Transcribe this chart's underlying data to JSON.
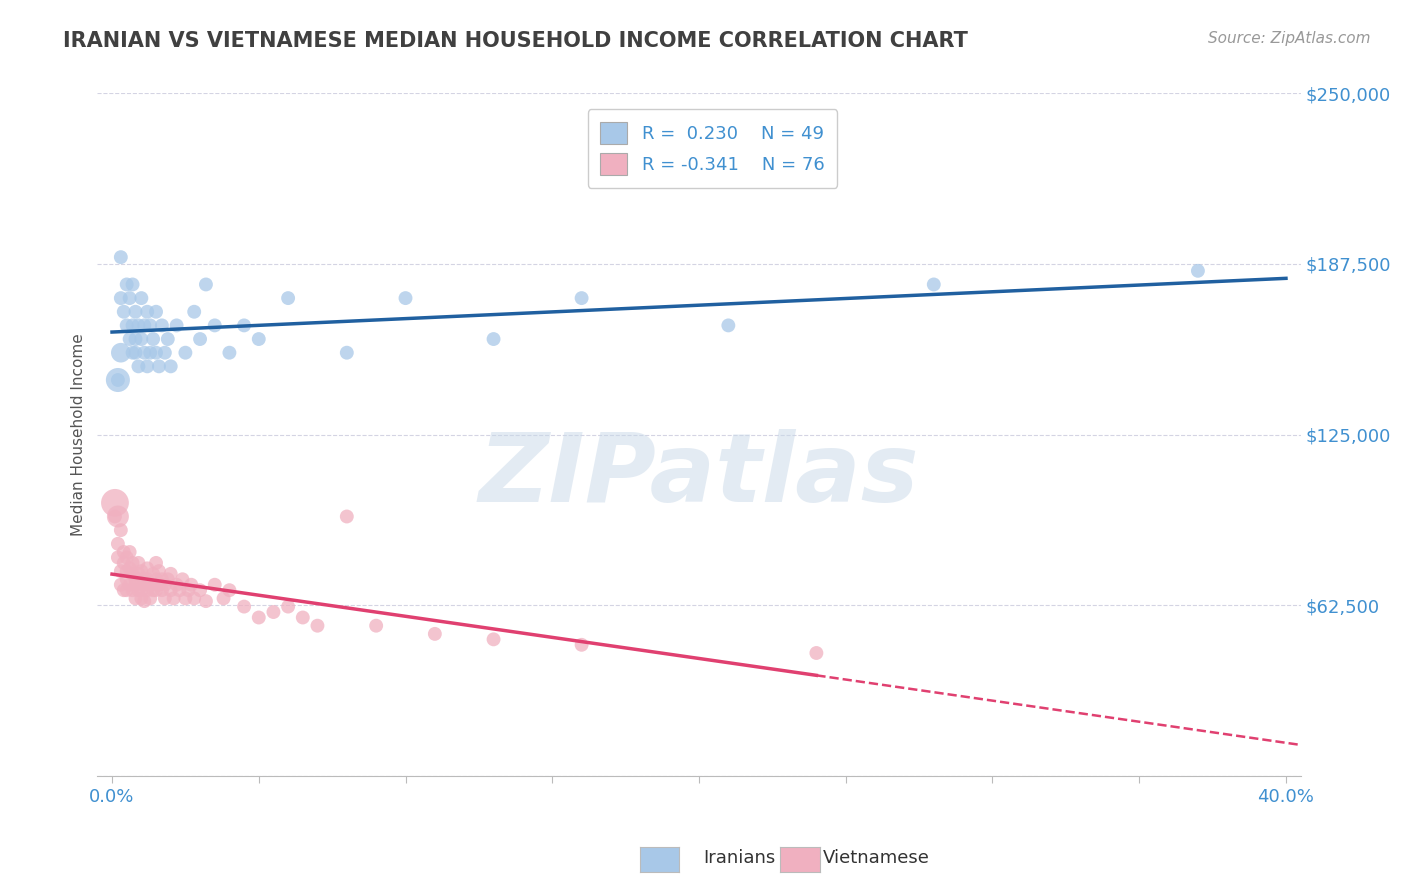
{
  "title": "IRANIAN VS VIETNAMESE MEDIAN HOUSEHOLD INCOME CORRELATION CHART",
  "source": "Source: ZipAtlas.com",
  "ylabel": "Median Household Income",
  "xlim": [
    -0.005,
    0.405
  ],
  "ylim": [
    0,
    250000
  ],
  "yticks": [
    0,
    62500,
    125000,
    187500,
    250000
  ],
  "ytick_labels": [
    "",
    "$62,500",
    "$125,000",
    "$187,500",
    "$250,000"
  ],
  "watermark": "ZIPatlas",
  "iranian_color": "#a8c8e8",
  "vietnamese_color": "#f0b0c0",
  "iranian_trend_color": "#2060a0",
  "vietnamese_trend_color": "#e04070",
  "background_color": "#ffffff",
  "grid_color": "#d0d0e0",
  "title_color": "#404040",
  "axis_label_color": "#4090d0",
  "iranian_scatter": {
    "x": [
      0.002,
      0.003,
      0.003,
      0.004,
      0.005,
      0.005,
      0.006,
      0.006,
      0.007,
      0.007,
      0.007,
      0.008,
      0.008,
      0.008,
      0.009,
      0.009,
      0.01,
      0.01,
      0.011,
      0.011,
      0.012,
      0.012,
      0.013,
      0.013,
      0.014,
      0.015,
      0.015,
      0.016,
      0.017,
      0.018,
      0.019,
      0.02,
      0.022,
      0.025,
      0.028,
      0.03,
      0.032,
      0.035,
      0.04,
      0.045,
      0.05,
      0.06,
      0.08,
      0.1,
      0.13,
      0.16,
      0.21,
      0.28,
      0.37
    ],
    "y": [
      145000,
      175000,
      190000,
      170000,
      165000,
      180000,
      160000,
      175000,
      155000,
      165000,
      180000,
      160000,
      170000,
      155000,
      165000,
      150000,
      160000,
      175000,
      155000,
      165000,
      150000,
      170000,
      155000,
      165000,
      160000,
      155000,
      170000,
      150000,
      165000,
      155000,
      160000,
      150000,
      165000,
      155000,
      170000,
      160000,
      180000,
      165000,
      155000,
      165000,
      160000,
      175000,
      155000,
      175000,
      160000,
      175000,
      165000,
      180000,
      185000
    ]
  },
  "iranian_scatter_big": {
    "x": [
      0.002,
      0.003
    ],
    "y": [
      145000,
      155000
    ],
    "sizes": [
      300,
      200
    ]
  },
  "vietnamese_scatter": {
    "x": [
      0.001,
      0.002,
      0.002,
      0.003,
      0.003,
      0.003,
      0.004,
      0.004,
      0.004,
      0.005,
      0.005,
      0.005,
      0.005,
      0.006,
      0.006,
      0.006,
      0.007,
      0.007,
      0.007,
      0.008,
      0.008,
      0.008,
      0.009,
      0.009,
      0.009,
      0.01,
      0.01,
      0.01,
      0.01,
      0.011,
      0.011,
      0.011,
      0.012,
      0.012,
      0.012,
      0.013,
      0.013,
      0.014,
      0.014,
      0.015,
      0.015,
      0.015,
      0.016,
      0.016,
      0.017,
      0.017,
      0.018,
      0.018,
      0.019,
      0.02,
      0.02,
      0.021,
      0.022,
      0.023,
      0.024,
      0.025,
      0.026,
      0.027,
      0.028,
      0.03,
      0.032,
      0.035,
      0.038,
      0.04,
      0.045,
      0.05,
      0.055,
      0.06,
      0.065,
      0.07,
      0.08,
      0.09,
      0.11,
      0.13,
      0.16,
      0.24
    ],
    "y": [
      95000,
      80000,
      85000,
      75000,
      70000,
      90000,
      68000,
      78000,
      82000,
      72000,
      68000,
      80000,
      75000,
      70000,
      76000,
      82000,
      68000,
      74000,
      78000,
      72000,
      65000,
      70000,
      68000,
      74000,
      78000,
      65000,
      72000,
      68000,
      75000,
      70000,
      64000,
      72000,
      68000,
      72000,
      76000,
      65000,
      70000,
      68000,
      74000,
      68000,
      72000,
      78000,
      70000,
      75000,
      68000,
      72000,
      65000,
      70000,
      72000,
      68000,
      74000,
      65000,
      70000,
      68000,
      72000,
      65000,
      68000,
      70000,
      65000,
      68000,
      64000,
      70000,
      65000,
      68000,
      62000,
      58000,
      60000,
      62000,
      58000,
      55000,
      95000,
      55000,
      52000,
      50000,
      48000,
      45000
    ]
  },
  "vietnamese_scatter_big": {
    "x": [
      0.001,
      0.002
    ],
    "y": [
      100000,
      95000
    ],
    "sizes": [
      400,
      250
    ]
  }
}
